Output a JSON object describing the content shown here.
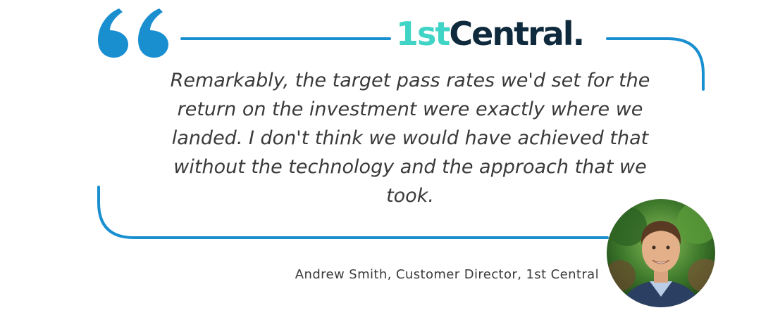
{
  "brand": {
    "logo_prefix": "1st",
    "logo_name": "Central",
    "logo_dot": ".",
    "colors": {
      "teal": "#3fd4c5",
      "navy": "#0f2a3d",
      "blue": "#1a8fd0"
    }
  },
  "quote": {
    "text": "Remarkably, the target pass rates we'd set for the return on the investment were exactly where we landed. I don't think we would have achieved that without the technology and the approach that we took."
  },
  "attribution": {
    "text": "Andrew Smith, Customer Director, 1st Central"
  },
  "icons": {
    "quote": "quote-mark-icon",
    "avatar": "person-photo"
  }
}
